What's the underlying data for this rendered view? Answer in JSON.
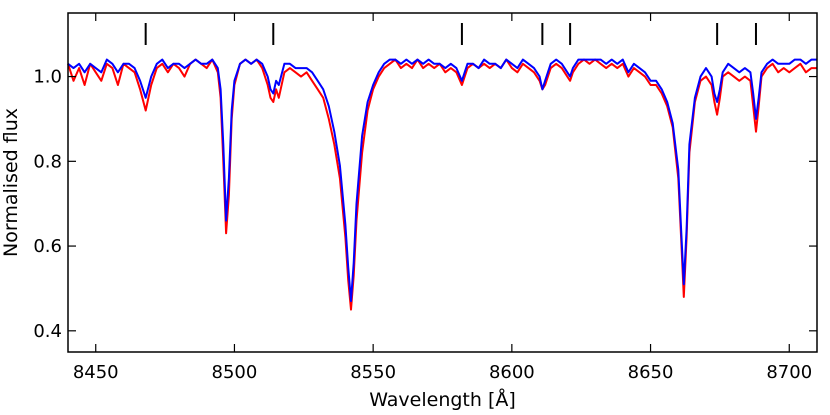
{
  "chart_data": {
    "type": "line",
    "title": "",
    "xlabel": "Wavelength [Å]",
    "ylabel": "Normalised flux",
    "xlim": [
      8440,
      8710
    ],
    "ylim": [
      0.35,
      1.15
    ],
    "xticks": [
      8450,
      8500,
      8550,
      8600,
      8650,
      8700
    ],
    "xtick_labels": [
      "8450",
      "8500",
      "8550",
      "8600",
      "8650",
      "8700"
    ],
    "yticks": [
      0.4,
      0.6,
      0.8,
      1.0
    ],
    "ytick_labels": [
      "0.4",
      "0.6",
      "0.8",
      "1.0"
    ],
    "grid": false,
    "legend": "none",
    "line_markers_x": [
      8468,
      8514,
      8582,
      8611,
      8621,
      8674,
      8688
    ],
    "series": [
      {
        "color": "#ff0000",
        "points": [
          [
            8440,
            1.03
          ],
          [
            8442,
            0.99
          ],
          [
            8444,
            1.02
          ],
          [
            8446,
            0.98
          ],
          [
            8448,
            1.03
          ],
          [
            8450,
            1.01
          ],
          [
            8452,
            0.99
          ],
          [
            8454,
            1.03
          ],
          [
            8456,
            1.02
          ],
          [
            8458,
            0.98
          ],
          [
            8460,
            1.03
          ],
          [
            8462,
            1.02
          ],
          [
            8464,
            1.01
          ],
          [
            8466,
            0.97
          ],
          [
            8468,
            0.92
          ],
          [
            8470,
            0.98
          ],
          [
            8472,
            1.02
          ],
          [
            8474,
            1.03
          ],
          [
            8476,
            1.01
          ],
          [
            8478,
            1.03
          ],
          [
            8480,
            1.02
          ],
          [
            8482,
            1.0
          ],
          [
            8484,
            1.03
          ],
          [
            8486,
            1.04
          ],
          [
            8488,
            1.03
          ],
          [
            8490,
            1.02
          ],
          [
            8492,
            1.04
          ],
          [
            8494,
            1.01
          ],
          [
            8495,
            0.95
          ],
          [
            8496,
            0.8
          ],
          [
            8497,
            0.63
          ],
          [
            8498,
            0.72
          ],
          [
            8499,
            0.9
          ],
          [
            8500,
            0.98
          ],
          [
            8502,
            1.03
          ],
          [
            8504,
            1.04
          ],
          [
            8506,
            1.03
          ],
          [
            8508,
            1.04
          ],
          [
            8510,
            1.02
          ],
          [
            8512,
            0.98
          ],
          [
            8513,
            0.95
          ],
          [
            8514,
            0.94
          ],
          [
            8515,
            0.97
          ],
          [
            8516,
            0.95
          ],
          [
            8518,
            1.01
          ],
          [
            8520,
            1.02
          ],
          [
            8522,
            1.01
          ],
          [
            8524,
            1.0
          ],
          [
            8526,
            1.01
          ],
          [
            8528,
            0.99
          ],
          [
            8530,
            0.97
          ],
          [
            8532,
            0.95
          ],
          [
            8534,
            0.9
          ],
          [
            8536,
            0.84
          ],
          [
            8538,
            0.76
          ],
          [
            8540,
            0.62
          ],
          [
            8541,
            0.52
          ],
          [
            8542,
            0.45
          ],
          [
            8543,
            0.53
          ],
          [
            8544,
            0.66
          ],
          [
            8546,
            0.82
          ],
          [
            8548,
            0.92
          ],
          [
            8550,
            0.97
          ],
          [
            8552,
            1.0
          ],
          [
            8554,
            1.02
          ],
          [
            8556,
            1.03
          ],
          [
            8558,
            1.04
          ],
          [
            8560,
            1.02
          ],
          [
            8562,
            1.03
          ],
          [
            8564,
            1.02
          ],
          [
            8566,
            1.04
          ],
          [
            8568,
            1.02
          ],
          [
            8570,
            1.03
          ],
          [
            8572,
            1.02
          ],
          [
            8574,
            1.03
          ],
          [
            8576,
            1.01
          ],
          [
            8578,
            1.02
          ],
          [
            8580,
            1.01
          ],
          [
            8582,
            0.98
          ],
          [
            8584,
            1.02
          ],
          [
            8586,
            1.03
          ],
          [
            8588,
            1.02
          ],
          [
            8590,
            1.03
          ],
          [
            8592,
            1.02
          ],
          [
            8594,
            1.03
          ],
          [
            8596,
            1.02
          ],
          [
            8598,
            1.04
          ],
          [
            8600,
            1.02
          ],
          [
            8602,
            1.01
          ],
          [
            8604,
            1.03
          ],
          [
            8606,
            1.02
          ],
          [
            8608,
            1.01
          ],
          [
            8610,
            0.99
          ],
          [
            8611,
            0.97
          ],
          [
            8612,
            0.98
          ],
          [
            8614,
            1.02
          ],
          [
            8616,
            1.03
          ],
          [
            8618,
            1.02
          ],
          [
            8620,
            1.0
          ],
          [
            8621,
            0.99
          ],
          [
            8622,
            1.01
          ],
          [
            8624,
            1.03
          ],
          [
            8626,
            1.04
          ],
          [
            8628,
            1.03
          ],
          [
            8630,
            1.04
          ],
          [
            8632,
            1.03
          ],
          [
            8634,
            1.02
          ],
          [
            8636,
            1.03
          ],
          [
            8638,
            1.02
          ],
          [
            8640,
            1.03
          ],
          [
            8642,
            1.0
          ],
          [
            8644,
            1.02
          ],
          [
            8646,
            1.01
          ],
          [
            8648,
            1.0
          ],
          [
            8650,
            0.98
          ],
          [
            8652,
            0.98
          ],
          [
            8654,
            0.96
          ],
          [
            8656,
            0.93
          ],
          [
            8658,
            0.88
          ],
          [
            8660,
            0.76
          ],
          [
            8661,
            0.62
          ],
          [
            8662,
            0.48
          ],
          [
            8663,
            0.62
          ],
          [
            8664,
            0.82
          ],
          [
            8666,
            0.94
          ],
          [
            8668,
            0.99
          ],
          [
            8670,
            1.0
          ],
          [
            8672,
            0.98
          ],
          [
            8673,
            0.94
          ],
          [
            8674,
            0.91
          ],
          [
            8675,
            0.95
          ],
          [
            8676,
            1.0
          ],
          [
            8678,
            1.01
          ],
          [
            8680,
            1.0
          ],
          [
            8682,
            0.99
          ],
          [
            8684,
            1.0
          ],
          [
            8686,
            0.99
          ],
          [
            8687,
            0.93
          ],
          [
            8688,
            0.87
          ],
          [
            8689,
            0.93
          ],
          [
            8690,
            1.0
          ],
          [
            8692,
            1.02
          ],
          [
            8694,
            1.03
          ],
          [
            8696,
            1.01
          ],
          [
            8698,
            1.02
          ],
          [
            8700,
            1.01
          ],
          [
            8702,
            1.02
          ],
          [
            8704,
            1.03
          ],
          [
            8706,
            1.01
          ],
          [
            8708,
            1.02
          ],
          [
            8710,
            1.02
          ]
        ]
      },
      {
        "color": "#0000ff",
        "points": [
          [
            8440,
            1.03
          ],
          [
            8442,
            1.02
          ],
          [
            8444,
            1.03
          ],
          [
            8446,
            1.01
          ],
          [
            8448,
            1.03
          ],
          [
            8450,
            1.02
          ],
          [
            8452,
            1.01
          ],
          [
            8454,
            1.04
          ],
          [
            8456,
            1.03
          ],
          [
            8458,
            1.01
          ],
          [
            8460,
            1.03
          ],
          [
            8462,
            1.03
          ],
          [
            8464,
            1.02
          ],
          [
            8466,
            0.99
          ],
          [
            8468,
            0.95
          ],
          [
            8470,
            1.0
          ],
          [
            8472,
            1.03
          ],
          [
            8474,
            1.04
          ],
          [
            8476,
            1.02
          ],
          [
            8478,
            1.03
          ],
          [
            8480,
            1.03
          ],
          [
            8482,
            1.02
          ],
          [
            8484,
            1.03
          ],
          [
            8486,
            1.04
          ],
          [
            8488,
            1.03
          ],
          [
            8490,
            1.03
          ],
          [
            8492,
            1.04
          ],
          [
            8494,
            1.02
          ],
          [
            8495,
            0.97
          ],
          [
            8496,
            0.84
          ],
          [
            8497,
            0.66
          ],
          [
            8498,
            0.76
          ],
          [
            8499,
            0.92
          ],
          [
            8500,
            0.99
          ],
          [
            8502,
            1.03
          ],
          [
            8504,
            1.04
          ],
          [
            8506,
            1.03
          ],
          [
            8508,
            1.04
          ],
          [
            8510,
            1.03
          ],
          [
            8512,
            1.0
          ],
          [
            8513,
            0.97
          ],
          [
            8514,
            0.96
          ],
          [
            8515,
            0.99
          ],
          [
            8516,
            0.98
          ],
          [
            8518,
            1.03
          ],
          [
            8520,
            1.03
          ],
          [
            8522,
            1.02
          ],
          [
            8524,
            1.02
          ],
          [
            8526,
            1.02
          ],
          [
            8528,
            1.01
          ],
          [
            8530,
            0.99
          ],
          [
            8532,
            0.97
          ],
          [
            8534,
            0.93
          ],
          [
            8536,
            0.87
          ],
          [
            8538,
            0.79
          ],
          [
            8540,
            0.65
          ],
          [
            8541,
            0.55
          ],
          [
            8542,
            0.47
          ],
          [
            8543,
            0.56
          ],
          [
            8544,
            0.7
          ],
          [
            8546,
            0.86
          ],
          [
            8548,
            0.94
          ],
          [
            8550,
            0.98
          ],
          [
            8552,
            1.01
          ],
          [
            8554,
            1.03
          ],
          [
            8556,
            1.04
          ],
          [
            8558,
            1.04
          ],
          [
            8560,
            1.03
          ],
          [
            8562,
            1.04
          ],
          [
            8564,
            1.03
          ],
          [
            8566,
            1.04
          ],
          [
            8568,
            1.03
          ],
          [
            8570,
            1.04
          ],
          [
            8572,
            1.03
          ],
          [
            8574,
            1.03
          ],
          [
            8576,
            1.02
          ],
          [
            8578,
            1.03
          ],
          [
            8580,
            1.02
          ],
          [
            8582,
            0.99
          ],
          [
            8584,
            1.03
          ],
          [
            8586,
            1.03
          ],
          [
            8588,
            1.02
          ],
          [
            8590,
            1.04
          ],
          [
            8592,
            1.03
          ],
          [
            8594,
            1.03
          ],
          [
            8596,
            1.02
          ],
          [
            8598,
            1.04
          ],
          [
            8600,
            1.03
          ],
          [
            8602,
            1.02
          ],
          [
            8604,
            1.04
          ],
          [
            8606,
            1.03
          ],
          [
            8608,
            1.02
          ],
          [
            8610,
            1.0
          ],
          [
            8611,
            0.97
          ],
          [
            8612,
            0.99
          ],
          [
            8614,
            1.03
          ],
          [
            8616,
            1.04
          ],
          [
            8618,
            1.03
          ],
          [
            8620,
            1.01
          ],
          [
            8621,
            1.0
          ],
          [
            8622,
            1.02
          ],
          [
            8624,
            1.04
          ],
          [
            8626,
            1.04
          ],
          [
            8628,
            1.04
          ],
          [
            8630,
            1.04
          ],
          [
            8632,
            1.04
          ],
          [
            8634,
            1.03
          ],
          [
            8636,
            1.04
          ],
          [
            8638,
            1.03
          ],
          [
            8640,
            1.04
          ],
          [
            8642,
            1.01
          ],
          [
            8644,
            1.03
          ],
          [
            8646,
            1.02
          ],
          [
            8648,
            1.01
          ],
          [
            8650,
            0.99
          ],
          [
            8652,
            0.99
          ],
          [
            8654,
            0.97
          ],
          [
            8656,
            0.94
          ],
          [
            8658,
            0.89
          ],
          [
            8660,
            0.78
          ],
          [
            8661,
            0.64
          ],
          [
            8662,
            0.51
          ],
          [
            8663,
            0.64
          ],
          [
            8664,
            0.84
          ],
          [
            8666,
            0.95
          ],
          [
            8668,
            1.0
          ],
          [
            8670,
            1.02
          ],
          [
            8672,
            1.0
          ],
          [
            8673,
            0.96
          ],
          [
            8674,
            0.94
          ],
          [
            8675,
            0.97
          ],
          [
            8676,
            1.01
          ],
          [
            8678,
            1.03
          ],
          [
            8680,
            1.02
          ],
          [
            8682,
            1.01
          ],
          [
            8684,
            1.02
          ],
          [
            8686,
            1.01
          ],
          [
            8687,
            0.96
          ],
          [
            8688,
            0.9
          ],
          [
            8689,
            0.95
          ],
          [
            8690,
            1.01
          ],
          [
            8692,
            1.03
          ],
          [
            8694,
            1.04
          ],
          [
            8696,
            1.03
          ],
          [
            8698,
            1.03
          ],
          [
            8700,
            1.03
          ],
          [
            8702,
            1.04
          ],
          [
            8704,
            1.04
          ],
          [
            8706,
            1.03
          ],
          [
            8708,
            1.04
          ],
          [
            8710,
            1.04
          ]
        ]
      }
    ]
  }
}
